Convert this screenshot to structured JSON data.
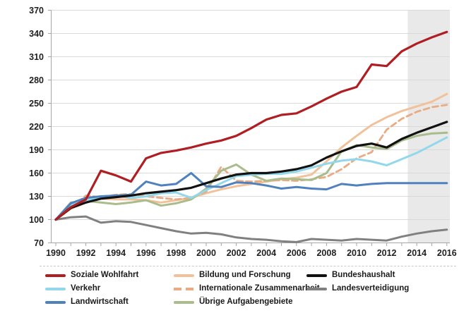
{
  "chart_data": {
    "type": "line",
    "title": "",
    "x": [
      1990,
      1991,
      1992,
      1993,
      1994,
      1995,
      1996,
      1997,
      1998,
      1999,
      2000,
      2001,
      2002,
      2003,
      2004,
      2005,
      2006,
      2007,
      2008,
      2009,
      2010,
      2011,
      2012,
      2013,
      2014,
      2015,
      2016
    ],
    "x_tick_labels": [
      "1990",
      "1992",
      "1994",
      "1996",
      "1998",
      "2000",
      "2002",
      "2004",
      "2006",
      "2008",
      "2010",
      "2012",
      "2014",
      "2016"
    ],
    "y_ticks": [
      70,
      100,
      130,
      160,
      190,
      220,
      250,
      280,
      310,
      340,
      370
    ],
    "ylim": [
      70,
      370
    ],
    "xlim": [
      1990,
      2016
    ],
    "index_base": "1990 = 100",
    "grid": "horizontal",
    "legend_position": "bottom",
    "forecast_band": {
      "x_start": 2013.4,
      "x_end": 2016.2,
      "color": "#e9e9e9"
    },
    "colors": {
      "gridline": "#d9d9d9",
      "axis": "#a6a6a6",
      "tick_text": "#1f1f1f"
    },
    "series": [
      {
        "name": "Bildung und Forschung",
        "color": "#f2c199",
        "style": "solid",
        "width": 3,
        "legend_col": 1,
        "legend_row": 0,
        "values": [
          100,
          114,
          122,
          127,
          126,
          126,
          125,
          122,
          125,
          128,
          134,
          139,
          143,
          146,
          149,
          152,
          154,
          158,
          175,
          193,
          208,
          222,
          232,
          240,
          246,
          252,
          262
        ]
      },
      {
        "name": "Internationale Zusammenarbeit",
        "color": "#e9ab83",
        "style": "dashed",
        "width": 2.8,
        "legend_col": 1,
        "legend_row": 1,
        "values": [
          100,
          115,
          131,
          129,
          132,
          133,
          130,
          128,
          126,
          128,
          136,
          168,
          150,
          149,
          150,
          151,
          150,
          152,
          155,
          165,
          179,
          187,
          216,
          230,
          239,
          245,
          248
        ]
      },
      {
        "name": "Landesverteidigung",
        "color": "#808080",
        "style": "solid",
        "width": 3,
        "legend_col": 2,
        "legend_row": 1,
        "values": [
          100,
          103,
          104,
          96,
          98,
          97,
          93,
          89,
          85,
          82,
          83,
          81,
          77,
          75,
          74,
          72,
          71,
          75,
          74,
          73,
          75,
          74,
          73,
          78,
          82,
          85,
          87
        ]
      },
      {
        "name": "Übrige Aufgabengebiete",
        "color": "#a9bc8b",
        "style": "solid",
        "width": 3,
        "legend_col": 1,
        "legend_row": 2,
        "values": [
          100,
          122,
          124,
          122,
          120,
          122,
          125,
          118,
          121,
          126,
          140,
          163,
          171,
          158,
          150,
          153,
          152,
          151,
          160,
          188,
          196,
          193,
          191,
          202,
          208,
          211,
          212
        ]
      },
      {
        "name": "Verkehr",
        "color": "#92d8ea",
        "style": "solid",
        "width": 3,
        "legend_col": 0,
        "legend_row": 1,
        "values": [
          100,
          119,
          125,
          129,
          131,
          128,
          130,
          134,
          135,
          128,
          138,
          147,
          156,
          158,
          159,
          159,
          162,
          167,
          172,
          176,
          178,
          175,
          170,
          178,
          186,
          196,
          206
        ]
      },
      {
        "name": "Landwirtschaft",
        "color": "#4f81bd",
        "style": "solid",
        "width": 3,
        "legend_col": 0,
        "legend_row": 2,
        "values": [
          100,
          121,
          128,
          130,
          131,
          132,
          149,
          144,
          146,
          160,
          143,
          142,
          148,
          147,
          144,
          140,
          142,
          140,
          139,
          146,
          144,
          146,
          147,
          147,
          147,
          147,
          147
        ]
      },
      {
        "name": "Bundeshaushalt",
        "color": "#111111",
        "style": "solid",
        "width": 3.2,
        "legend_col": 2,
        "legend_row": 0,
        "values": [
          100,
          115,
          122,
          127,
          129,
          131,
          134,
          136,
          138,
          141,
          147,
          153,
          158,
          160,
          160,
          162,
          165,
          170,
          180,
          188,
          195,
          198,
          193,
          204,
          212,
          219,
          226
        ]
      },
      {
        "name": "Soziale Wohlfahrt",
        "color": "#af1e23",
        "style": "solid",
        "width": 3.2,
        "legend_col": 0,
        "legend_row": 0,
        "values": [
          100,
          116,
          126,
          163,
          157,
          149,
          179,
          186,
          189,
          193,
          198,
          202,
          208,
          218,
          229,
          235,
          237,
          246,
          256,
          265,
          271,
          300,
          298,
          317,
          327,
          335,
          342
        ]
      }
    ]
  }
}
